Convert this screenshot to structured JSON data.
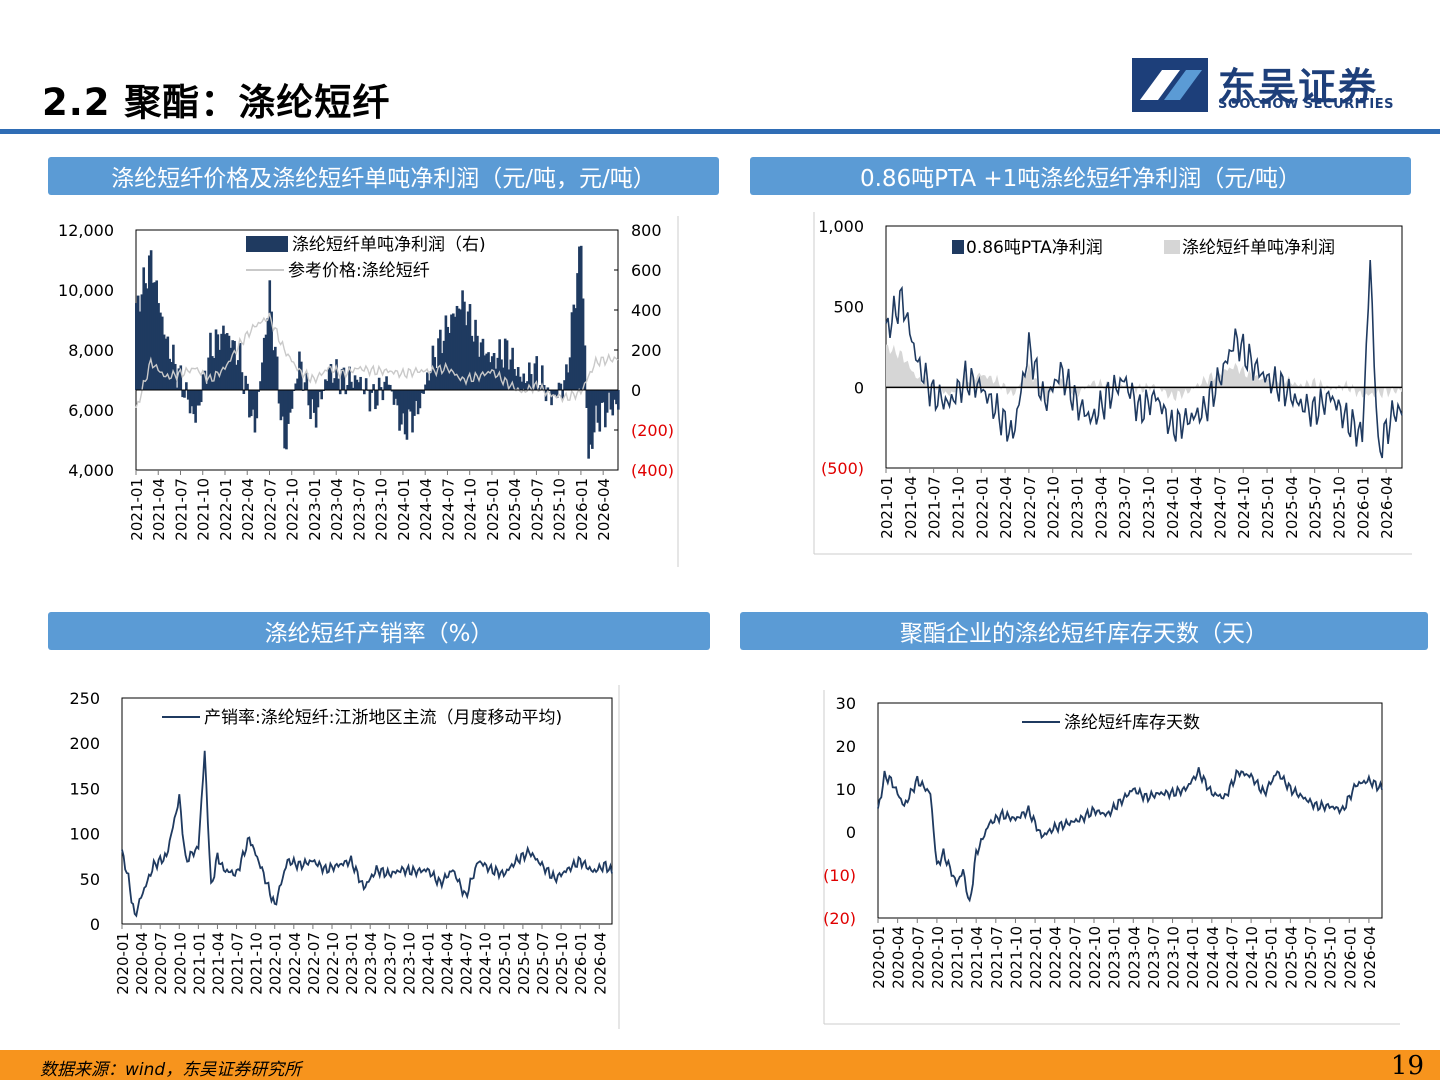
{
  "header": {
    "title": "2.2 聚酯：涤纶短纤",
    "logo_cn": "东吴证券",
    "logo_en": "SOOCHOW SECURITIES"
  },
  "colors": {
    "navy": "#1f3a60",
    "accent": "#5b9bd5",
    "rule": "#2f6db5",
    "footer": "#f7941d",
    "neg_label": "#e00000"
  },
  "panels": [
    {
      "title": "涤纶短纤价格及涤纶短纤单吨净利润（元/吨，元/吨）"
    },
    {
      "title": "0.86吨PTA +1吨涤纶短纤净利润（元/吨）"
    },
    {
      "title": "涤纶短纤产销率（%）"
    },
    {
      "title": "聚酯企业的涤纶短纤库存天数（天）"
    }
  ],
  "chart_data": [
    {
      "type": "bar",
      "x_start": "2021-01",
      "x_end": "2026-06",
      "x_ticks": [
        "2021-01",
        "2021-04",
        "2021-07",
        "2021-10",
        "2022-01",
        "2022-04",
        "2022-07",
        "2022-10",
        "2023-01",
        "2023-04",
        "2023-07",
        "2023-10",
        "2024-01",
        "2024-04",
        "2024-07",
        "2024-10",
        "2025-01",
        "2025-04",
        "2025-07",
        "2025-10",
        "2026-01",
        "2026-04"
      ],
      "y_left_ticks": [
        "12,000",
        "10,000",
        "8,000",
        "6,000",
        "4,000"
      ],
      "ylim_left": [
        4000,
        12000
      ],
      "y_right_ticks": [
        "800",
        "600",
        "400",
        "200",
        "0",
        "(200)",
        "(400)"
      ],
      "ylim_right": [
        -400,
        800
      ],
      "legend": [
        "涤纶短纤单吨净利润（右)",
        "参考价格:涤纶短纤"
      ],
      "series": [
        {
          "name": "涤纶短纤单吨净利润（右)",
          "axis": "right",
          "type": "bar",
          "x": [
            "2021-01",
            "2021-03",
            "2021-05",
            "2021-07",
            "2021-09",
            "2021-11",
            "2022-01",
            "2022-03",
            "2022-05",
            "2022-07",
            "2022-09",
            "2022-11",
            "2023-01",
            "2023-03",
            "2023-05",
            "2023-07",
            "2023-09",
            "2023-11",
            "2024-01",
            "2024-03",
            "2024-05",
            "2024-07",
            "2024-09",
            "2024-11",
            "2025-01",
            "2025-03",
            "2025-05",
            "2025-07",
            "2025-09",
            "2025-11",
            "2026-01",
            "2026-02",
            "2026-03",
            "2026-05"
          ],
          "values": [
            400,
            650,
            250,
            50,
            -150,
            200,
            300,
            150,
            -200,
            480,
            -300,
            150,
            -150,
            100,
            50,
            50,
            -50,
            50,
            -200,
            -100,
            150,
            320,
            450,
            250,
            150,
            200,
            50,
            100,
            -50,
            50,
            750,
            -350,
            -150,
            -80
          ]
        },
        {
          "name": "参考价格:涤纶短纤",
          "axis": "left",
          "type": "line",
          "x": [
            "2021-01",
            "2021-03",
            "2021-05",
            "2021-07",
            "2021-09",
            "2021-11",
            "2022-01",
            "2022-03",
            "2022-05",
            "2022-07",
            "2022-09",
            "2022-11",
            "2023-01",
            "2023-03",
            "2023-05",
            "2023-07",
            "2023-09",
            "2023-11",
            "2024-01",
            "2024-03",
            "2024-05",
            "2024-07",
            "2024-09",
            "2024-11",
            "2025-01",
            "2025-03",
            "2025-05",
            "2025-07",
            "2025-09",
            "2025-11",
            "2026-01",
            "2026-03",
            "2026-05"
          ],
          "values": [
            6000,
            7600,
            7100,
            7200,
            7400,
            7000,
            7400,
            8200,
            8800,
            9100,
            8000,
            7300,
            7000,
            7400,
            7200,
            7400,
            7300,
            7300,
            7200,
            7300,
            7300,
            7400,
            7000,
            7100,
            7300,
            6900,
            6600,
            6800,
            6500,
            6400,
            6600,
            7600,
            7700
          ]
        }
      ]
    },
    {
      "type": "area",
      "x_start": "2021-01",
      "x_end": "2026-06",
      "x_ticks": [
        "2021-01",
        "2021-04",
        "2021-07",
        "2021-10",
        "2022-01",
        "2022-04",
        "2022-07",
        "2022-10",
        "2023-01",
        "2023-04",
        "2023-07",
        "2023-10",
        "2024-01",
        "2024-04",
        "2024-07",
        "2024-10",
        "2025-01",
        "2025-04",
        "2025-07",
        "2025-10",
        "2026-01",
        "2026-04"
      ],
      "y_ticks": [
        "1,000",
        "500",
        "0",
        "(500)"
      ],
      "ylim": [
        -500,
        1000
      ],
      "legend": [
        "0.86吨PTA净利润",
        "涤纶短纤单吨净利润"
      ],
      "series": [
        {
          "name": "0.86吨PTA净利润",
          "x": [
            "2021-01",
            "2021-03",
            "2021-05",
            "2021-07",
            "2021-09",
            "2021-11",
            "2022-01",
            "2022-03",
            "2022-05",
            "2022-07",
            "2022-09",
            "2022-11",
            "2023-01",
            "2023-03",
            "2023-05",
            "2023-07",
            "2023-09",
            "2023-11",
            "2024-01",
            "2024-03",
            "2024-05",
            "2024-07",
            "2024-09",
            "2024-11",
            "2025-01",
            "2025-03",
            "2025-05",
            "2025-07",
            "2025-09",
            "2025-11",
            "2026-01",
            "2026-02",
            "2026-03",
            "2026-05"
          ],
          "values": [
            350,
            550,
            150,
            -50,
            -100,
            50,
            0,
            -150,
            -300,
            250,
            -100,
            100,
            -100,
            -200,
            -50,
            50,
            -150,
            -50,
            -250,
            -200,
            -150,
            50,
            300,
            150,
            50,
            0,
            -100,
            -150,
            -50,
            -200,
            -300,
            780,
            -400,
            -150
          ]
        },
        {
          "name": "涤纶短纤单吨净利润",
          "x": [
            "2021-01",
            "2021-03",
            "2021-05",
            "2021-07",
            "2021-09",
            "2021-11",
            "2022-01",
            "2022-03",
            "2022-05",
            "2022-07",
            "2022-09",
            "2022-11",
            "2023-01",
            "2023-03",
            "2023-05",
            "2023-07",
            "2023-09",
            "2023-11",
            "2024-01",
            "2024-03",
            "2024-05",
            "2024-07",
            "2024-09",
            "2024-11",
            "2025-01",
            "2025-03",
            "2025-05",
            "2025-07",
            "2025-09",
            "2025-11",
            "2026-01",
            "2026-03",
            "2026-05"
          ],
          "values": [
            250,
            200,
            50,
            20,
            -50,
            50,
            80,
            40,
            -50,
            120,
            -80,
            40,
            -40,
            30,
            10,
            10,
            -10,
            10,
            -60,
            -30,
            40,
            90,
            130,
            70,
            40,
            60,
            10,
            30,
            -10,
            10,
            -50,
            -40,
            -20
          ]
        }
      ]
    },
    {
      "type": "line",
      "x_start": "2020-01",
      "x_end": "2026-06",
      "x_ticks": [
        "2020-01",
        "2020-04",
        "2020-07",
        "2020-10",
        "2021-01",
        "2021-04",
        "2021-07",
        "2021-10",
        "2022-01",
        "2022-04",
        "2022-07",
        "2022-10",
        "2023-01",
        "2023-04",
        "2023-07",
        "2023-10",
        "2024-01",
        "2024-04",
        "2024-07",
        "2024-10",
        "2025-01",
        "2025-04",
        "2025-07",
        "2025-10",
        "2026-01",
        "2026-04"
      ],
      "y_ticks": [
        "250",
        "200",
        "150",
        "100",
        "50",
        "0"
      ],
      "ylim": [
        0,
        250
      ],
      "legend": [
        "产销率:涤纶短纤:江浙地区主流（月度移动平均)"
      ],
      "series": [
        {
          "name": "产销率:涤纶短纤:江浙地区主流（月度移动平均)",
          "x": [
            "2020-01",
            "2020-02",
            "2020-03",
            "2020-04",
            "2020-06",
            "2020-08",
            "2020-10",
            "2020-11",
            "2021-01",
            "2021-02",
            "2021-03",
            "2021-04",
            "2021-05",
            "2021-07",
            "2021-09",
            "2021-11",
            "2022-01",
            "2022-03",
            "2022-05",
            "2022-07",
            "2022-09",
            "2022-11",
            "2023-01",
            "2023-03",
            "2023-05",
            "2023-07",
            "2023-09",
            "2023-11",
            "2024-01",
            "2024-03",
            "2024-05",
            "2024-07",
            "2024-09",
            "2024-11",
            "2025-01",
            "2025-03",
            "2025-05",
            "2025-07",
            "2025-09",
            "2025-11",
            "2026-01",
            "2026-03",
            "2026-05",
            "2026-06"
          ],
          "values": [
            80,
            50,
            8,
            30,
            65,
            75,
            140,
            70,
            85,
            190,
            40,
            75,
            60,
            55,
            95,
            60,
            20,
            70,
            65,
            70,
            60,
            65,
            70,
            40,
            60,
            55,
            60,
            58,
            60,
            45,
            60,
            30,
            70,
            60,
            55,
            70,
            80,
            65,
            50,
            60,
            70,
            58,
            65,
            57
          ]
        }
      ]
    },
    {
      "type": "line",
      "x_start": "2020-01",
      "x_end": "2026-06",
      "x_ticks": [
        "2020-01",
        "2020-04",
        "2020-07",
        "2020-10",
        "2021-01",
        "2021-04",
        "2021-07",
        "2021-10",
        "2022-01",
        "2022-04",
        "2022-07",
        "2022-10",
        "2023-01",
        "2023-04",
        "2023-07",
        "2023-10",
        "2024-01",
        "2024-04",
        "2024-07",
        "2024-10",
        "2025-01",
        "2025-04",
        "2025-07",
        "2025-10",
        "2026-01",
        "2026-04"
      ],
      "y_ticks": [
        "30",
        "20",
        "10",
        "0",
        "(10)",
        "(20)"
      ],
      "ylim": [
        -20,
        30
      ],
      "legend": [
        "涤纶短纤库存天数"
      ],
      "series": [
        {
          "name": "涤纶短纤库存天数",
          "x": [
            "2020-01",
            "2020-02",
            "2020-03",
            "2020-05",
            "2020-06",
            "2020-07",
            "2020-09",
            "2020-10",
            "2020-11",
            "2021-01",
            "2021-02",
            "2021-03",
            "2021-04",
            "2021-06",
            "2021-08",
            "2021-10",
            "2021-12",
            "2022-02",
            "2022-04",
            "2022-06",
            "2022-08",
            "2022-10",
            "2022-12",
            "2023-02",
            "2023-04",
            "2023-06",
            "2023-08",
            "2023-10",
            "2023-12",
            "2024-02",
            "2024-04",
            "2024-06",
            "2024-08",
            "2024-10",
            "2024-12",
            "2025-02",
            "2025-04",
            "2025-06",
            "2025-08",
            "2025-10",
            "2025-12",
            "2026-02",
            "2026-04",
            "2026-06"
          ],
          "values": [
            5,
            13,
            12,
            6,
            9,
            12,
            9,
            -8,
            -5,
            -12,
            -9,
            -17,
            -5,
            2,
            4,
            3,
            5,
            -1,
            1,
            2,
            3,
            5,
            4,
            7,
            10,
            8,
            9,
            9,
            10,
            14,
            9,
            8,
            14,
            13,
            9,
            14,
            10,
            8,
            6,
            6,
            5,
            11,
            12,
            10
          ]
        }
      ]
    }
  ],
  "footer": {
    "source": "数据来源：wind，东吴证券研究所",
    "page_number": "19"
  }
}
